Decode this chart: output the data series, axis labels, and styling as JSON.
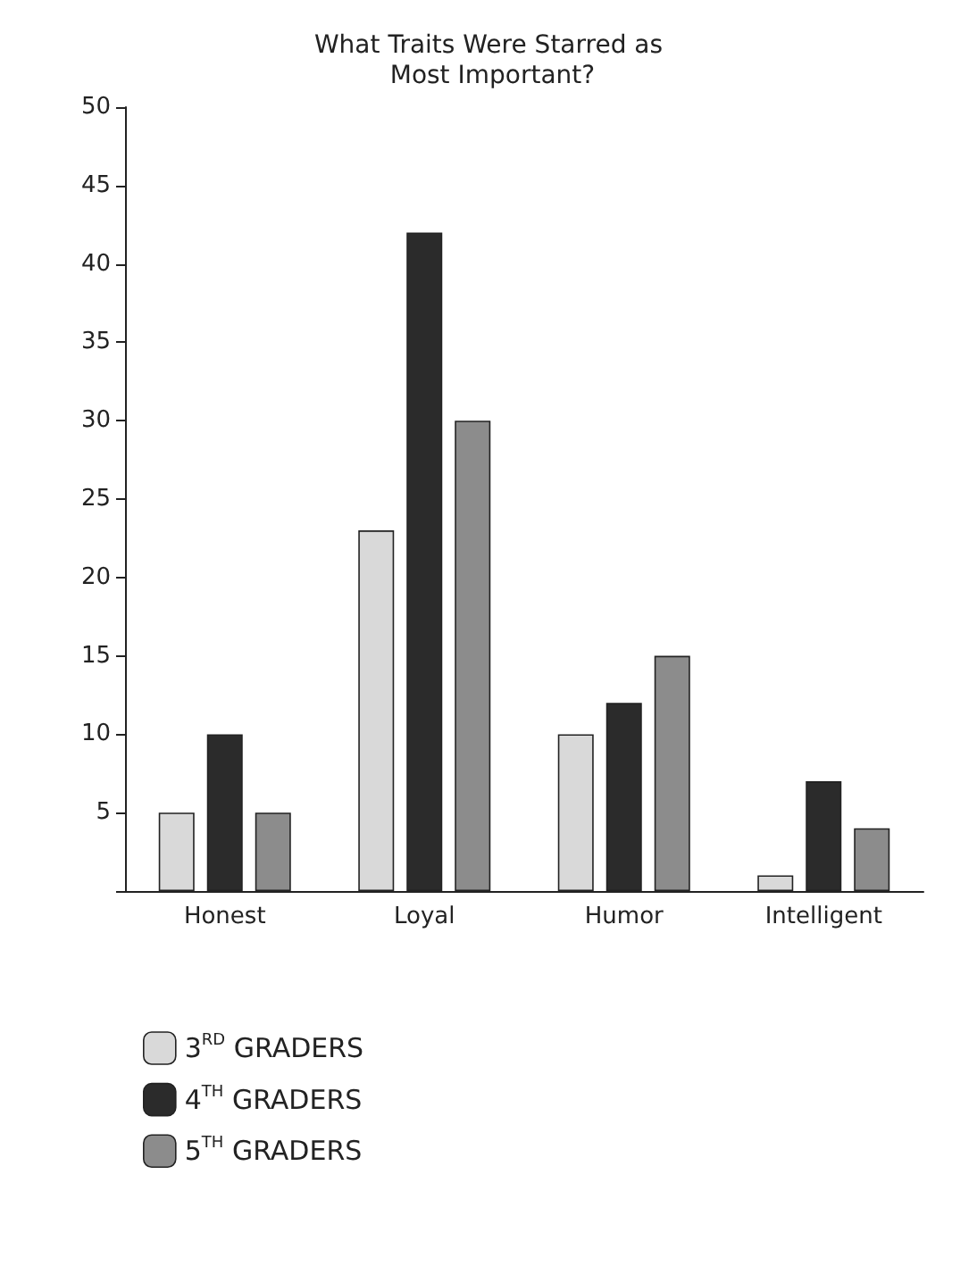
{
  "chart_data": {
    "type": "bar",
    "title": "What Traits Were Starred as Most Important?",
    "categories": [
      "Honest",
      "Loyal",
      "Humor",
      "Intelligent"
    ],
    "series": [
      {
        "name": "3$^{RD}$ GRADERS",
        "color": "#d9d9d9",
        "values": [
          5,
          23,
          10,
          1
        ]
      },
      {
        "name": "4$^{TH}$ GRADERS",
        "color": "#2b2b2b",
        "values": [
          10,
          42,
          12,
          7
        ]
      },
      {
        "name": "5$^{TH}$ GRADERS",
        "color": "#8c8c8c",
        "values": [
          5,
          30,
          15,
          4
        ]
      }
    ],
    "ylim": [
      0,
      50
    ],
    "yticks": [
      {
        "value": 0,
        "label": null
      },
      5,
      10,
      15,
      20,
      25,
      30,
      35,
      40,
      45,
      50
    ],
    "grid": false,
    "legend": "bottom left"
  }
}
